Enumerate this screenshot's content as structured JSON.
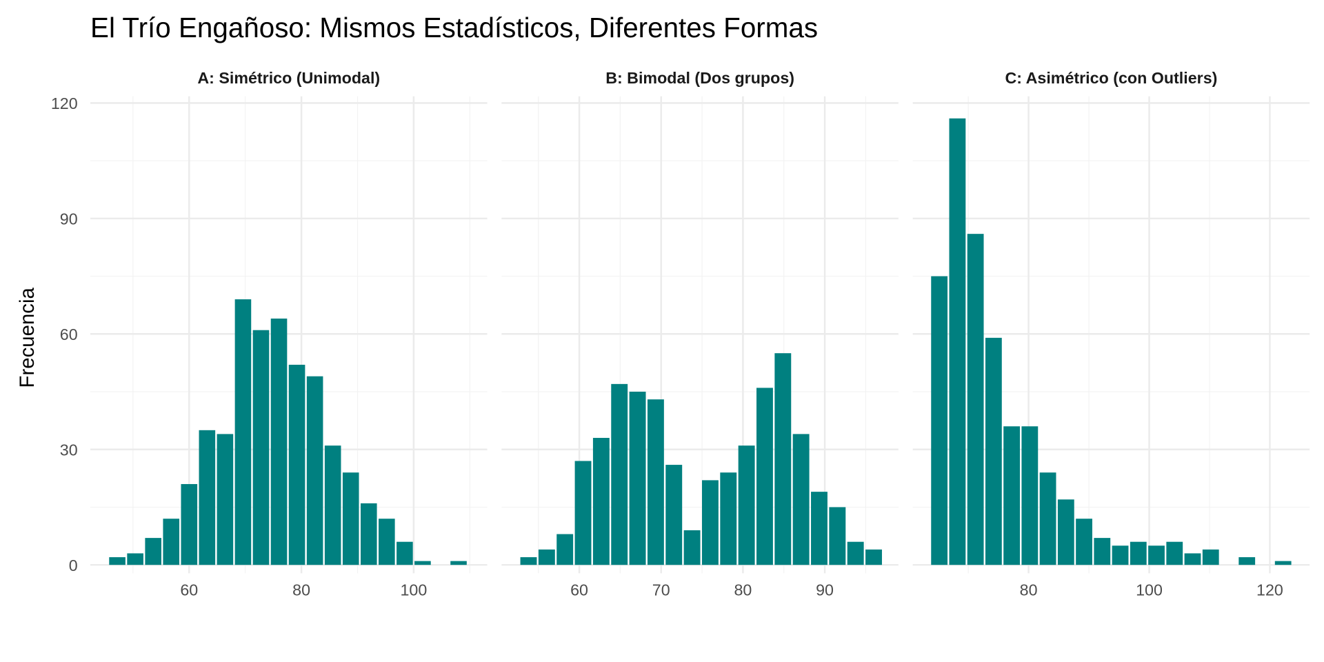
{
  "chart_data": {
    "type": "bar",
    "title": "El Trío Engañoso: Mismos Estadísticos, Diferentes Formas",
    "ylabel": "Frecuencia",
    "ylim": [
      0,
      120
    ],
    "yticks": [
      0,
      30,
      60,
      90,
      120
    ],
    "ytick_labels": [
      "0",
      "30",
      "60",
      "90",
      "120"
    ],
    "color": "#008080",
    "panels": [
      {
        "title": "A: Simétrico (Unimodal)",
        "xlim": [
          42.4,
          113.1
        ],
        "xticks": [
          60,
          80,
          100
        ],
        "xtick_labels": [
          "60",
          "80",
          "100"
        ],
        "minor_x": [
          50,
          70,
          90,
          110
        ],
        "bin_start": 47.2,
        "bin_width": 3.2,
        "values": [
          2,
          3,
          7,
          12,
          21,
          35,
          34,
          69,
          61,
          64,
          52,
          49,
          31,
          24,
          16,
          12,
          6,
          1,
          0,
          1
        ]
      },
      {
        "title": "B: Bimodal (Dos grupos)",
        "xlim": [
          50.5,
          99.0
        ],
        "xticks": [
          60,
          70,
          80,
          90
        ],
        "xtick_labels": [
          "60",
          "70",
          "80",
          "90"
        ],
        "minor_x": [
          55,
          65,
          75,
          85,
          95
        ],
        "bin_start": 53.8,
        "bin_width": 2.22,
        "values": [
          2,
          4,
          8,
          27,
          33,
          47,
          45,
          43,
          26,
          9,
          22,
          24,
          31,
          46,
          55,
          34,
          19,
          15,
          6,
          4
        ]
      },
      {
        "title": "C: Asimétrico (con Outliers)",
        "xlim": [
          60.8,
          126.6
        ],
        "xticks": [
          80,
          100,
          120
        ],
        "xtick_labels": [
          "80",
          "100",
          "120"
        ],
        "minor_x": [
          70,
          90,
          110
        ],
        "bin_start": 65.2,
        "bin_width": 3.0,
        "values": [
          75,
          116,
          86,
          59,
          36,
          36,
          24,
          17,
          12,
          7,
          5,
          6,
          5,
          6,
          3,
          4,
          0,
          2,
          0,
          1
        ]
      }
    ]
  }
}
